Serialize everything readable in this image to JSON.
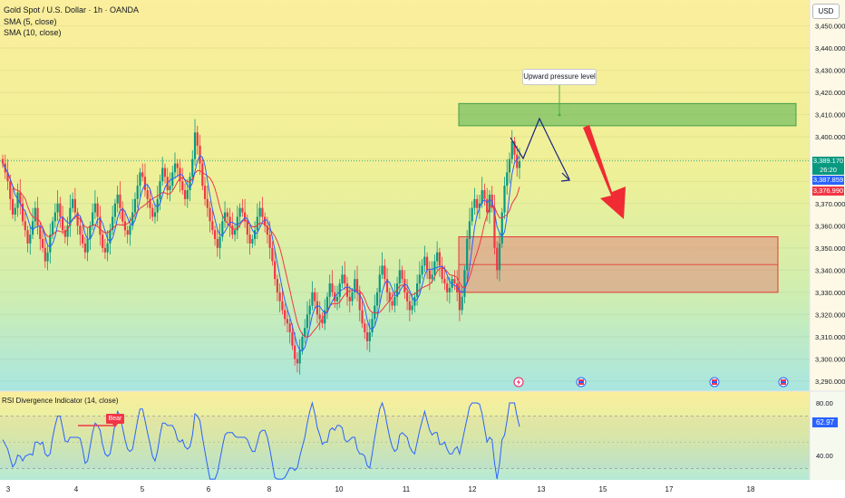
{
  "header": {
    "title": "Gold Spot / U.S. Dollar · 1h · OANDA",
    "indicators": [
      "SMA (5, close)",
      "SMA (10, close)"
    ]
  },
  "currency": "USD",
  "price_axis": {
    "ticks": [
      "3,450.000",
      "3,440.000",
      "3,430.000",
      "3,420.000",
      "3,410.000",
      "3,400.000",
      "3,370.000",
      "3,360.000",
      "3,350.000",
      "3,340.000",
      "3,330.000",
      "3,320.000",
      "3,310.000",
      "3,300.000",
      "3,290.000"
    ],
    "labels": [
      {
        "text": "3,389.170",
        "color": "#089981"
      },
      {
        "text": "26:20",
        "color": "#089981"
      },
      {
        "text": "3,387.859",
        "color": "#2962ff"
      },
      {
        "text": "3,376.990",
        "color": "#f23645"
      }
    ]
  },
  "annotation": {
    "callout": "Upward pressure level"
  },
  "rsi": {
    "title": "RSI Divergence Indicator (14, close)",
    "current_value": "62.97",
    "ticks": [
      "80.00",
      "40.00"
    ],
    "signal": "Bear"
  },
  "time_axis": {
    "labels": [
      "3",
      "4",
      "5",
      "6",
      "8",
      "10",
      "11",
      "12",
      "13",
      "15",
      "17",
      "18"
    ]
  },
  "colors": {
    "up": "#089981",
    "down": "#f23645",
    "sma5": "#2962ff",
    "sma10": "#f23645",
    "resistance_zone": "#4caf50",
    "support_zone": "#e57373"
  },
  "chart_data": {
    "type": "candlestick",
    "symbol": "XAUUSD",
    "timeframe": "1h",
    "ylim": [
      3290,
      3455
    ],
    "last_price": 3389.17,
    "sma5": 3387.859,
    "sma10": 3376.99,
    "zones": {
      "resistance": [
        3405,
        3415
      ],
      "support": [
        3330,
        3355
      ]
    },
    "rsi_current": 62.97
  }
}
